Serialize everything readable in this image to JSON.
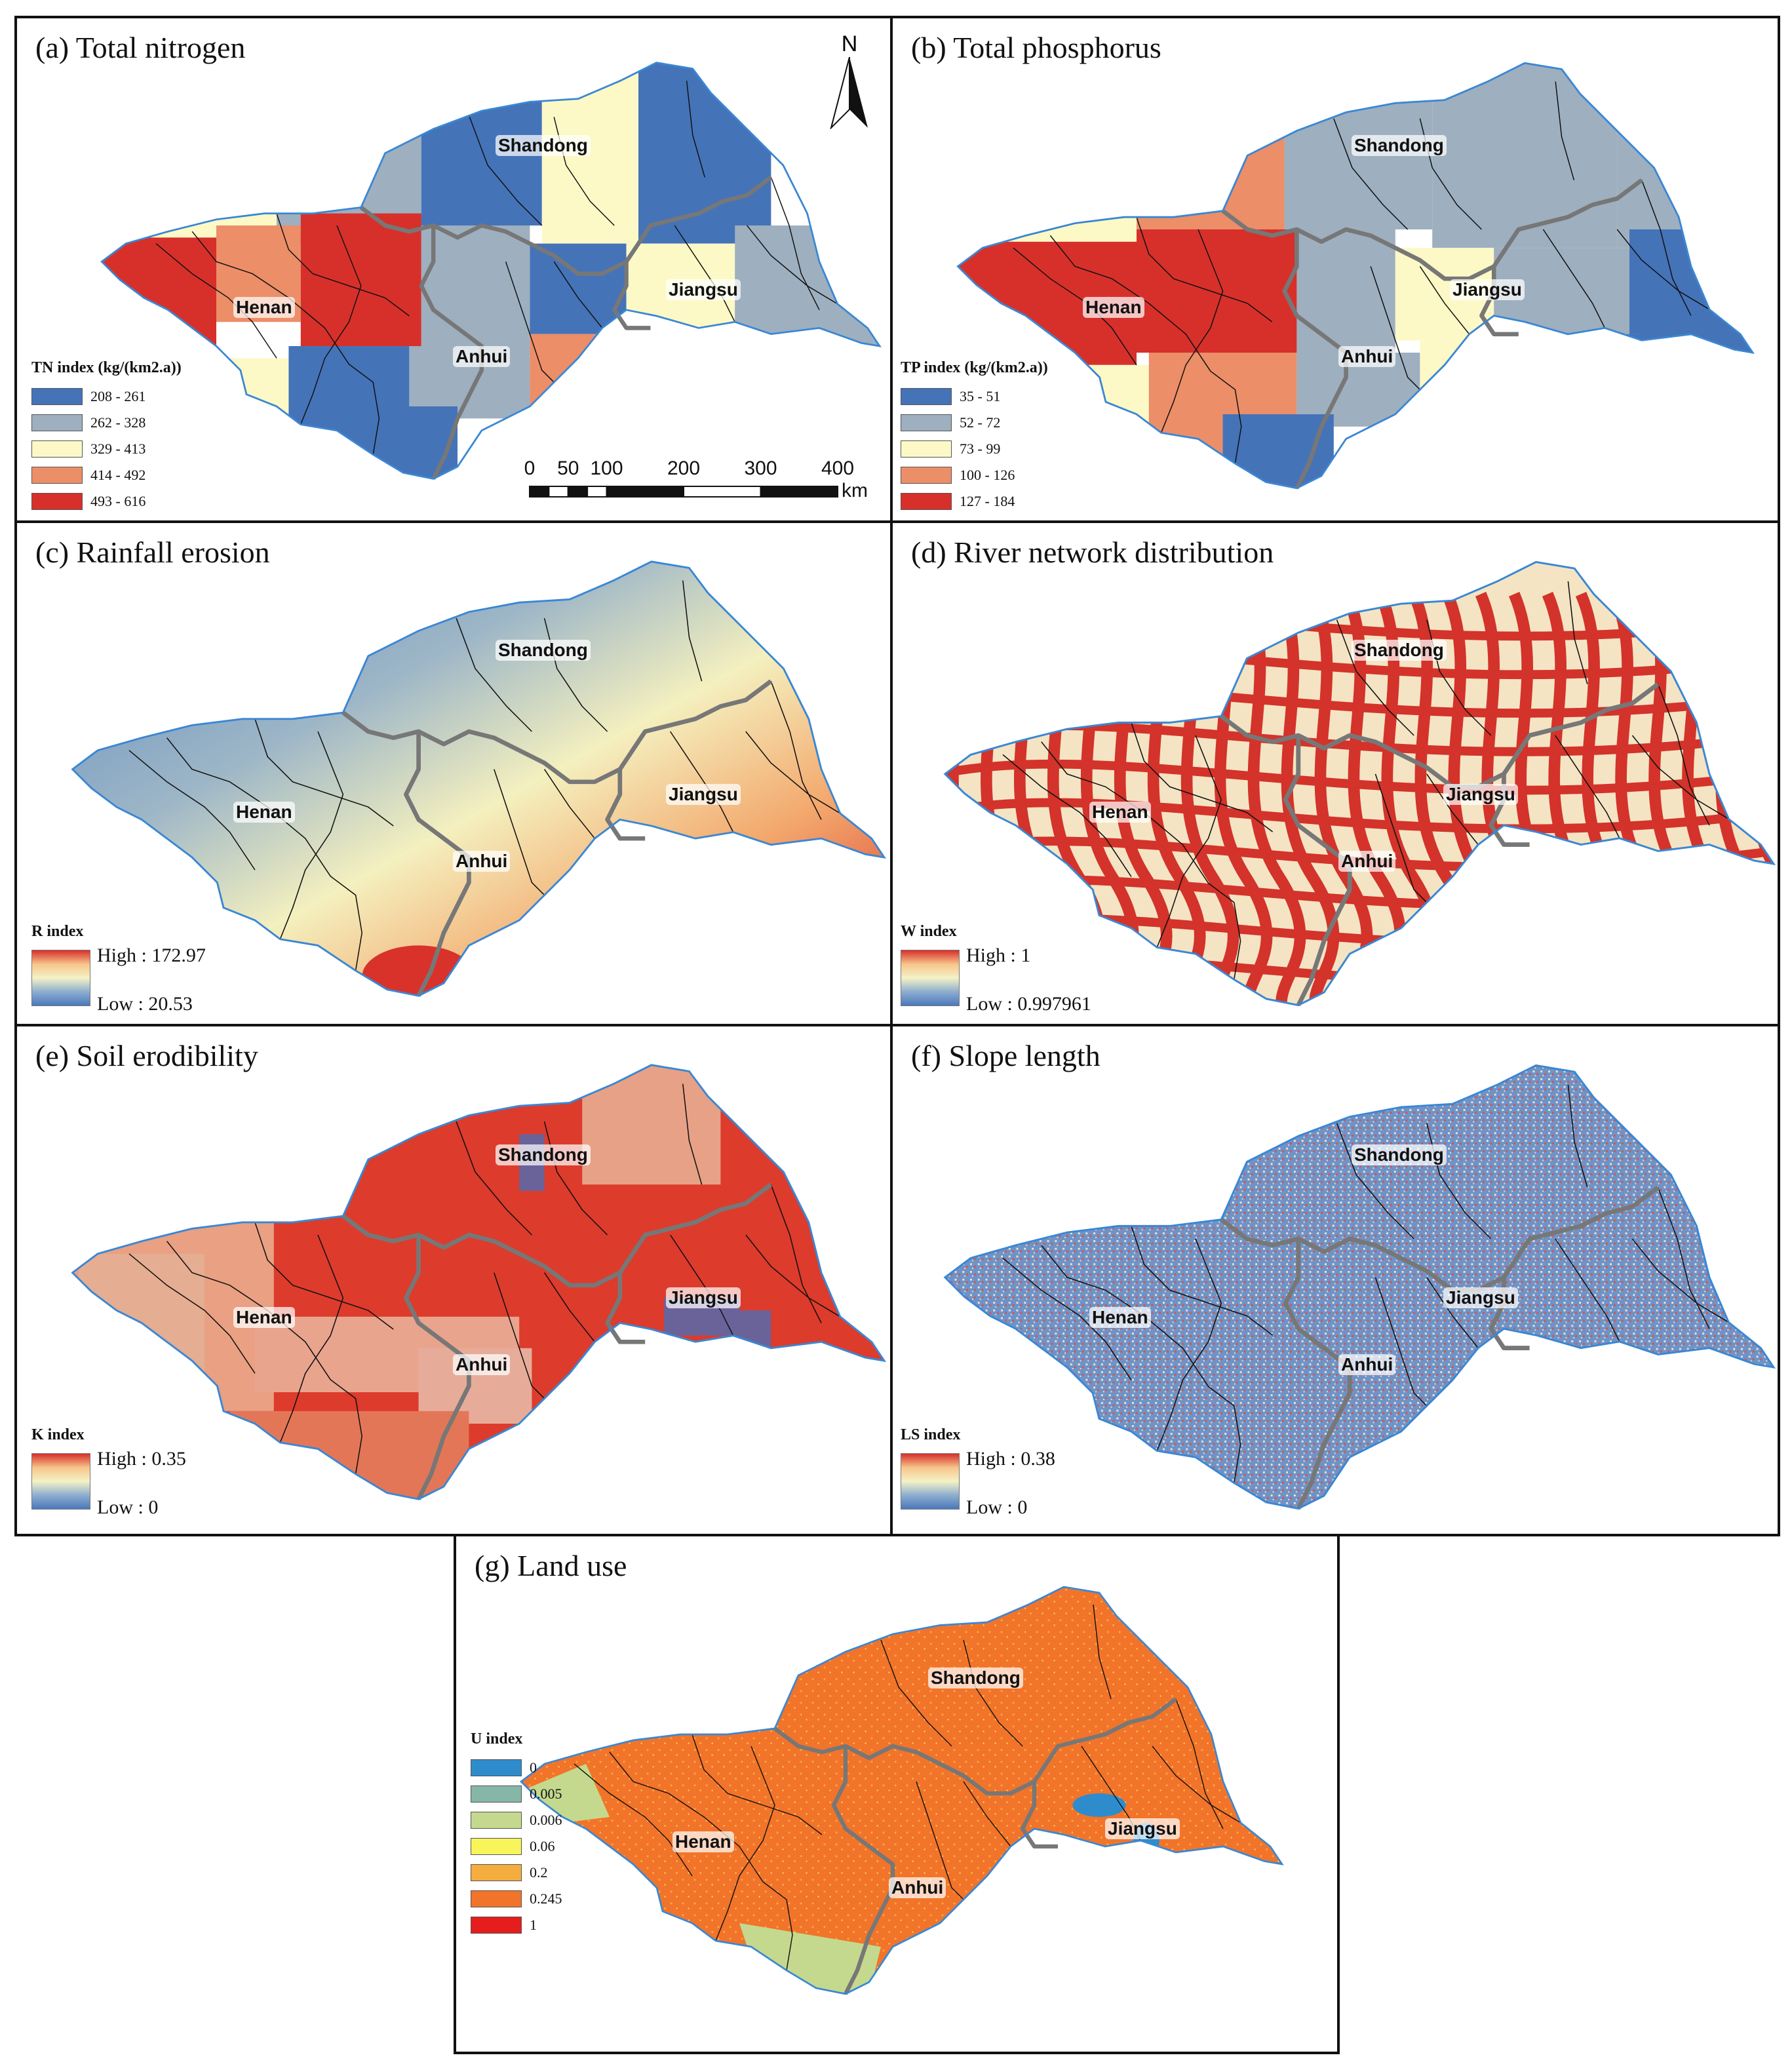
{
  "panels": [
    {
      "id": "a",
      "title": "(a) Total nitrogen",
      "type": "class",
      "legend_title": "TN index (kg/(km2.a))",
      "classes": [
        {
          "label": "208 - 261",
          "color": "#4573b8"
        },
        {
          "label": "262 - 328",
          "color": "#9eafbf"
        },
        {
          "label": "329 - 413",
          "color": "#fcf9c7"
        },
        {
          "label": "414 - 492",
          "color": "#ec8e68"
        },
        {
          "label": "493 - 616",
          "color": "#d7302b"
        }
      ]
    },
    {
      "id": "b",
      "title": "(b) Total phosphorus",
      "type": "class",
      "legend_title": "TP index (kg/(km2.a))",
      "classes": [
        {
          "label": "35 - 51",
          "color": "#4573b8"
        },
        {
          "label": "52 - 72",
          "color": "#9eafbf"
        },
        {
          "label": "73 - 99",
          "color": "#fcf9c7"
        },
        {
          "label": "100 - 126",
          "color": "#ec8e68"
        },
        {
          "label": "127 - 184",
          "color": "#d7302b"
        }
      ]
    },
    {
      "id": "c",
      "title": "(c) Rainfall erosion",
      "type": "ramp",
      "legend_title": "R index",
      "high": "High : 172.97",
      "low": "Low : 20.53"
    },
    {
      "id": "d",
      "title": "(d) River network distribution",
      "type": "ramp",
      "legend_title": "W index",
      "high": "High : 1",
      "low": "Low : 0.997961"
    },
    {
      "id": "e",
      "title": "(e) Soil erodibility",
      "type": "ramp",
      "legend_title": "K index",
      "high": "High : 0.35",
      "low": "Low : 0"
    },
    {
      "id": "f",
      "title": "(f) Slope length",
      "type": "ramp",
      "legend_title": "LS index",
      "high": "High : 0.38",
      "low": "Low : 0"
    },
    {
      "id": "g",
      "title": "(g) Land use",
      "type": "class",
      "legend_title": "U index",
      "classes": [
        {
          "label": "0",
          "color": "#2e8ccc"
        },
        {
          "label": "0.005",
          "color": "#86b6a8"
        },
        {
          "label": "0.006",
          "color": "#c4d98e"
        },
        {
          "label": "0.06",
          "color": "#f7f55a"
        },
        {
          "label": "0.2",
          "color": "#f5ad3f"
        },
        {
          "label": "0.245",
          "color": "#f2742a"
        },
        {
          "label": "1",
          "color": "#e51d1d"
        }
      ]
    }
  ],
  "provinces": {
    "shandong": "Shandong",
    "henan": "Henan",
    "anhui": "Anhui",
    "jiangsu": "Jiangsu"
  },
  "north_label": "N",
  "scale": {
    "ticks": [
      "0",
      "50",
      "100",
      "200",
      "300",
      "400"
    ],
    "unit": "km"
  },
  "colors": {
    "boundary_blue": "#3a87d4",
    "province_border": "#777777",
    "county_border": "#111111"
  }
}
